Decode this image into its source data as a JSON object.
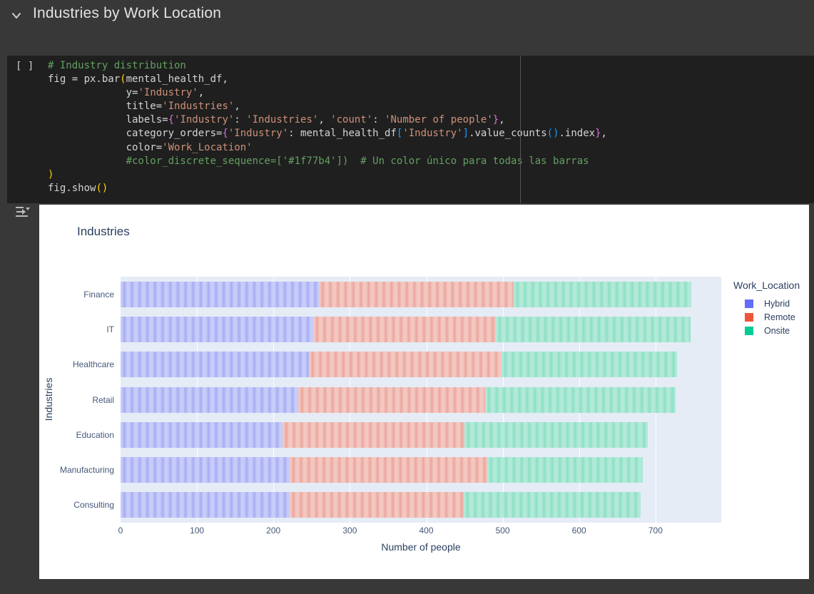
{
  "header": {
    "title": "Industries by Work Location"
  },
  "code_cell": {
    "prompt": "[ ]",
    "lines": [
      [
        {
          "c": "cm",
          "t": "# Industry distribution"
        }
      ],
      [
        {
          "c": "pl",
          "t": "fig = px.bar"
        },
        {
          "c": "b1",
          "t": "("
        },
        {
          "c": "pl",
          "t": "mental_health_df,"
        }
      ],
      [
        {
          "c": "pl",
          "t": "             y="
        },
        {
          "c": "st",
          "t": "'Industry'"
        },
        {
          "c": "pl",
          "t": ","
        }
      ],
      [
        {
          "c": "pl",
          "t": "             title="
        },
        {
          "c": "st",
          "t": "'Industries'"
        },
        {
          "c": "pl",
          "t": ","
        }
      ],
      [
        {
          "c": "pl",
          "t": "             labels="
        },
        {
          "c": "b2",
          "t": "{"
        },
        {
          "c": "st",
          "t": "'Industry'"
        },
        {
          "c": "pl",
          "t": ": "
        },
        {
          "c": "st",
          "t": "'Industries'"
        },
        {
          "c": "pl",
          "t": ", "
        },
        {
          "c": "st",
          "t": "'count'"
        },
        {
          "c": "pl",
          "t": ": "
        },
        {
          "c": "st",
          "t": "'Number of people'"
        },
        {
          "c": "b2",
          "t": "}"
        },
        {
          "c": "pl",
          "t": ","
        }
      ],
      [
        {
          "c": "pl",
          "t": "             category_orders="
        },
        {
          "c": "b2",
          "t": "{"
        },
        {
          "c": "st",
          "t": "'Industry'"
        },
        {
          "c": "pl",
          "t": ": mental_health_df"
        },
        {
          "c": "b3",
          "t": "["
        },
        {
          "c": "st",
          "t": "'Industry'"
        },
        {
          "c": "b3",
          "t": "]"
        },
        {
          "c": "pl",
          "t": ".value_counts"
        },
        {
          "c": "b3",
          "t": "()"
        },
        {
          "c": "pl",
          "t": ".index"
        },
        {
          "c": "b2",
          "t": "}"
        },
        {
          "c": "pl",
          "t": ","
        }
      ],
      [
        {
          "c": "pl",
          "t": "             color="
        },
        {
          "c": "st",
          "t": "'Work_Location'"
        }
      ],
      [
        {
          "c": "cm",
          "t": "             #color_discrete_sequence=['#1f77b4'])  # Un color único para todas las barras"
        }
      ],
      [
        {
          "c": "b1",
          "t": ")"
        }
      ],
      [
        {
          "c": "pl",
          "t": "fig.show"
        },
        {
          "c": "b1",
          "t": "()"
        }
      ]
    ]
  },
  "chart_data": {
    "type": "bar",
    "orientation": "horizontal",
    "stacked": true,
    "title": "Industries",
    "xlabel": "Number of people",
    "ylabel": "Industries",
    "legend_title": "Work_Location",
    "legend_position": "right",
    "grid": true,
    "plot_bg": "#e5ecf6",
    "categories": [
      "Finance",
      "IT",
      "Healthcare",
      "Retail",
      "Education",
      "Manufacturing",
      "Consulting"
    ],
    "series": [
      {
        "name": "Hybrid",
        "color": "#636EFA",
        "fill_light": "#c7ccf9",
        "fill_dark": "#a6adf4",
        "values": [
          259,
          252,
          246,
          232,
          212,
          221,
          221
        ]
      },
      {
        "name": "Remote",
        "color": "#EF553B",
        "fill_light": "#f3c8c2",
        "fill_dark": "#eca69c",
        "values": [
          255,
          239,
          252,
          245,
          238,
          259,
          228
        ]
      },
      {
        "name": "Onsite",
        "color": "#00CC96",
        "fill_light": "#b2e9d8",
        "fill_dark": "#8ce0c4",
        "values": [
          233,
          255,
          230,
          249,
          240,
          203,
          231
        ]
      }
    ],
    "totals": [
      747,
      746,
      728,
      726,
      690,
      683,
      680
    ],
    "xticks": [
      0,
      100,
      200,
      300,
      400,
      500,
      600,
      700
    ],
    "xlim": [
      0,
      786
    ]
  }
}
